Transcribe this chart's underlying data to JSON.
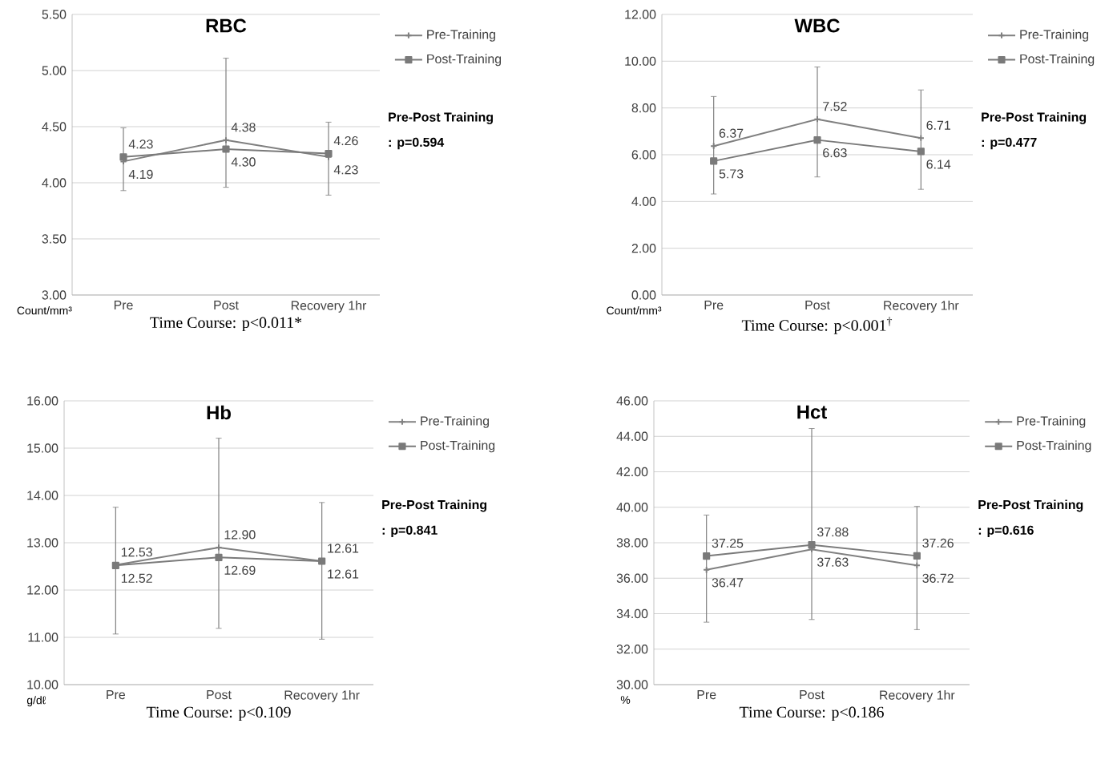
{
  "chart_data": [
    {
      "type": "line",
      "title": "RBC",
      "xlabel": "Time Course:  p<0.011*",
      "ylabel": "Count/mm³",
      "categories": [
        "Pre",
        "Post",
        "Recovery 1hr"
      ],
      "series": [
        {
          "name": "Pre-Training",
          "color": "#808080",
          "marker": "cross",
          "values": [
            4.19,
            4.38,
            4.23
          ],
          "value_labels": [
            "4.19",
            "4.38",
            "4.23"
          ],
          "errors": [
            [
              3.93,
              4.49
            ],
            [
              3.96,
              5.11
            ],
            [
              3.89,
              4.54
            ]
          ]
        },
        {
          "name": "Post-Training",
          "color": "#7a7a7a",
          "marker": "square",
          "values": [
            4.23,
            4.3,
            4.26
          ],
          "value_labels": [
            "4.23",
            "4.30",
            "4.26"
          ]
        }
      ],
      "ylim": [
        3.0,
        5.5
      ],
      "yticks": [
        {
          "value": 3.0,
          "label": "3.00"
        },
        {
          "value": 3.5,
          "label": "3.50"
        },
        {
          "value": 4.0,
          "label": "4.00"
        },
        {
          "value": 4.5,
          "label": "4.50"
        },
        {
          "value": 5.0,
          "label": "5.00"
        },
        {
          "value": 5.5,
          "label": "5.50"
        }
      ],
      "grid": "y",
      "legend": "right",
      "annotations": [
        "Pre-Post Training",
        ": p=0.594"
      ]
    },
    {
      "type": "line",
      "title": "WBC",
      "xlabel": "Time Course:  p<0.001$^{†}$",
      "ylabel": "Count/mm³",
      "categories": [
        "Pre",
        "Post",
        "Recovery 1hr"
      ],
      "series": [
        {
          "name": "Pre-Training",
          "color": "#808080",
          "marker": "cross",
          "values": [
            6.37,
            7.52,
            6.71
          ],
          "value_labels": [
            "6.37",
            "7.52",
            "6.71"
          ],
          "errors": [
            [
              4.32,
              8.49
            ],
            [
              5.05,
              9.75
            ],
            [
              4.52,
              8.77
            ]
          ]
        },
        {
          "name": "Post-Training",
          "color": "#7a7a7a",
          "marker": "square",
          "values": [
            5.73,
            6.63,
            6.14
          ],
          "value_labels": [
            "5.73",
            "6.63",
            "6.14"
          ]
        }
      ],
      "ylim": [
        0,
        12
      ],
      "yticks": [
        {
          "value": 0,
          "label": "0.00"
        },
        {
          "value": 2,
          "label": "2.00"
        },
        {
          "value": 4,
          "label": "4.00"
        },
        {
          "value": 6,
          "label": "6.00"
        },
        {
          "value": 8,
          "label": "8.00"
        },
        {
          "value": 10,
          "label": "10.00"
        },
        {
          "value": 12,
          "label": "12.00"
        }
      ],
      "grid": "y",
      "legend": "right",
      "annotations": [
        "Pre-Post Training",
        ": p=0.477"
      ]
    },
    {
      "type": "line",
      "title": "Hb",
      "xlabel": "Time Course:  p<0.109",
      "ylabel": "g/dℓ",
      "categories": [
        "Pre",
        "Post",
        "Recovery 1hr"
      ],
      "series": [
        {
          "name": "Pre-Training",
          "color": "#808080",
          "marker": "cross",
          "values": [
            12.53,
            12.9,
            12.61
          ],
          "value_labels": [
            "12.53",
            "12.90",
            "12.61"
          ],
          "errors": [
            [
              11.07,
              13.75
            ],
            [
              11.19,
              15.21
            ],
            [
              10.96,
              13.85
            ]
          ]
        },
        {
          "name": "Post-Training",
          "color": "#7a7a7a",
          "marker": "square",
          "values": [
            12.52,
            12.69,
            12.61
          ],
          "value_labels": [
            "12.52",
            "12.69",
            "12.61"
          ]
        }
      ],
      "ylim": [
        10,
        16
      ],
      "yticks": [
        {
          "value": 10,
          "label": "10.00"
        },
        {
          "value": 11,
          "label": "11.00"
        },
        {
          "value": 12,
          "label": "12.00"
        },
        {
          "value": 13,
          "label": "13.00"
        },
        {
          "value": 14,
          "label": "14.00"
        },
        {
          "value": 15,
          "label": "15.00"
        },
        {
          "value": 16,
          "label": "16.00"
        }
      ],
      "grid": "y",
      "legend": "right",
      "annotations": [
        "Pre-Post Training",
        ": p=0.841"
      ]
    },
    {
      "type": "line",
      "title": "Hct",
      "xlabel": "Time Course:  p<0.186",
      "ylabel": "%",
      "categories": [
        "Pre",
        "Post",
        "Recovery 1hr"
      ],
      "series": [
        {
          "name": "Pre-Training",
          "color": "#808080",
          "marker": "cross",
          "values": [
            36.47,
            37.63,
            36.72
          ],
          "value_labels": [
            "36.47",
            "37.63",
            "36.72"
          ],
          "errors": [
            [
              33.52,
              39.56
            ],
            [
              33.67,
              44.44
            ],
            [
              33.1,
              40.05
            ]
          ]
        },
        {
          "name": "Post-Training",
          "color": "#7a7a7a",
          "marker": "square",
          "values": [
            37.25,
            37.88,
            37.26
          ],
          "value_labels": [
            "37.25",
            "37.88",
            "37.26"
          ]
        }
      ],
      "ylim": [
        30,
        46
      ],
      "yticks": [
        {
          "value": 30,
          "label": "30.00"
        },
        {
          "value": 32,
          "label": "32.00"
        },
        {
          "value": 34,
          "label": "34.00"
        },
        {
          "value": 36,
          "label": "36.00"
        },
        {
          "value": 38,
          "label": "38.00"
        },
        {
          "value": 40,
          "label": "40.00"
        },
        {
          "value": 42,
          "label": "42.00"
        },
        {
          "value": 44,
          "label": "44.00"
        },
        {
          "value": 46,
          "label": "46.00"
        }
      ],
      "grid": "y",
      "legend": "right",
      "annotations": [
        "Pre-Post Training",
        ": p=0.616"
      ]
    }
  ]
}
